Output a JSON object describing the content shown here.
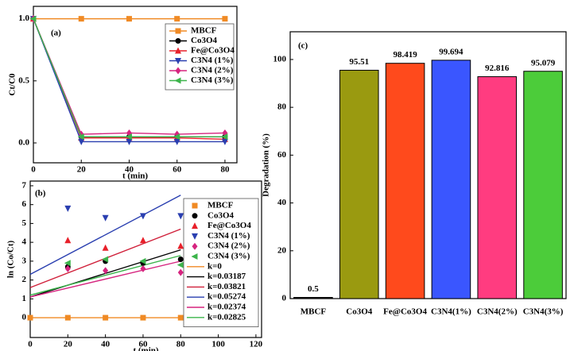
{
  "chart_data": [
    {
      "type": "line",
      "panel_label": "(a)",
      "x_label": "t (min)",
      "y_label": "Ct/C0",
      "x": [
        0,
        20,
        40,
        60,
        80
      ],
      "xlim": [
        0,
        85
      ],
      "xticks": [
        0,
        20,
        40,
        60,
        80
      ],
      "ylim": [
        -0.16,
        1.1
      ],
      "yticks": [
        {
          "value": 0,
          "label": "0.0"
        },
        {
          "value": 0.5,
          "label": "0.5"
        },
        {
          "value": 1,
          "label": "1.0"
        }
      ],
      "legend": "upper right",
      "series": [
        {
          "name": "MBCF",
          "color": "#f08a24",
          "marker": "square",
          "values": [
            1,
            1,
            1,
            1,
            1
          ]
        },
        {
          "name": "Co3O4",
          "color": "#000000",
          "marker": "circle",
          "values": [
            1,
            0.05,
            0.05,
            0.05,
            0.05
          ]
        },
        {
          "name": "Fe@Co3O4",
          "color": "#e8202a",
          "marker": "triangle-up",
          "values": [
            1,
            0.04,
            0.04,
            0.04,
            0.03
          ]
        },
        {
          "name": "C3N4 (1%)",
          "color": "#2a3fb0",
          "marker": "triangle-down",
          "values": [
            1,
            0.01,
            0.01,
            0.01,
            0.01
          ]
        },
        {
          "name": "C3N4 (2%)",
          "color": "#d6247f",
          "marker": "diamond",
          "values": [
            1,
            0.07,
            0.08,
            0.07,
            0.08
          ]
        },
        {
          "name": "C3N4 (3%)",
          "color": "#3cb44b",
          "marker": "triangle-left",
          "values": [
            1,
            0.05,
            0.05,
            0.05,
            0.05
          ]
        }
      ]
    },
    {
      "type": "scatter",
      "panel_label": "(b)",
      "x_label": "t (min)",
      "y_label": "ln (Co/Ct)",
      "xlim": [
        0,
        123
      ],
      "xticks": [
        0,
        20,
        40,
        60,
        80,
        100,
        120
      ],
      "ylim": [
        -1.05,
        7.25
      ],
      "yticks": [
        0,
        1,
        2,
        3,
        4,
        5,
        6,
        7
      ],
      "legend": "upper right",
      "series": [
        {
          "name": "MBCF",
          "color": "#f08a24",
          "marker": "square",
          "x": [
            0,
            20,
            40,
            60,
            80
          ],
          "values": [
            0,
            0,
            0,
            0,
            0
          ]
        },
        {
          "name": "Co3O4",
          "color": "#000000",
          "marker": "circle",
          "x": [
            20,
            40,
            60,
            80
          ],
          "values": [
            2.7,
            3.0,
            2.9,
            3.1
          ]
        },
        {
          "name": "Fe@Co3O4",
          "color": "#e8202a",
          "marker": "triangle-up",
          "x": [
            20,
            40,
            60,
            80
          ],
          "values": [
            4.1,
            3.7,
            4.1,
            3.8
          ]
        },
        {
          "name": "C3N4 (1%)",
          "color": "#2a3fb0",
          "marker": "triangle-down",
          "x": [
            20,
            40,
            60,
            80
          ],
          "values": [
            5.8,
            5.3,
            5.4,
            5.4
          ]
        },
        {
          "name": "C3N4 (2%)",
          "color": "#d6247f",
          "marker": "diamond",
          "x": [
            20,
            40,
            60,
            80
          ],
          "values": [
            2.6,
            2.5,
            2.6,
            2.4
          ]
        },
        {
          "name": "C3N4 (3%)",
          "color": "#3cb44b",
          "marker": "triangle-left",
          "x": [
            20,
            40,
            60,
            80
          ],
          "values": [
            2.9,
            3.1,
            3.0,
            2.8
          ]
        }
      ],
      "fit_lines": [
        {
          "name": "k=0",
          "color": "#f08a24",
          "x": [
            0,
            80
          ],
          "values": [
            0,
            0
          ]
        },
        {
          "name": "k=0.03187",
          "color": "#000000",
          "x": [
            0,
            80
          ],
          "values": [
            1.1,
            3.6
          ]
        },
        {
          "name": "k=0.03821",
          "color": "#d0203a",
          "x": [
            0,
            80
          ],
          "values": [
            1.6,
            4.7
          ]
        },
        {
          "name": "k=0.05274",
          "color": "#2a3fb0",
          "x": [
            0,
            80
          ],
          "values": [
            2.3,
            6.5
          ]
        },
        {
          "name": "k=0.02374",
          "color": "#d6247f",
          "x": [
            0,
            80
          ],
          "values": [
            1.1,
            3.0
          ]
        },
        {
          "name": "k=0.02825",
          "color": "#3cb44b",
          "x": [
            0,
            80
          ],
          "values": [
            1.2,
            3.3
          ]
        }
      ]
    },
    {
      "type": "bar",
      "panel_label": "(c)",
      "y_label": "Degradation (%)",
      "categories": [
        "MBCF",
        "Co3O4",
        "Fe@Co3O4",
        "C3N4(1%)",
        "C3N4(2%)",
        "C3N4(3%)"
      ],
      "values": [
        0.5,
        95.51,
        98.419,
        99.694,
        92.816,
        95.079
      ],
      "colors": [
        "#222222",
        "#9a9a10",
        "#ff4a1c",
        "#3a56ff",
        "#ff3c80",
        "#4ccc3a"
      ],
      "ylim": [
        0,
        111.6
      ],
      "yticks": [
        0,
        20,
        40,
        60,
        80,
        100
      ]
    }
  ]
}
